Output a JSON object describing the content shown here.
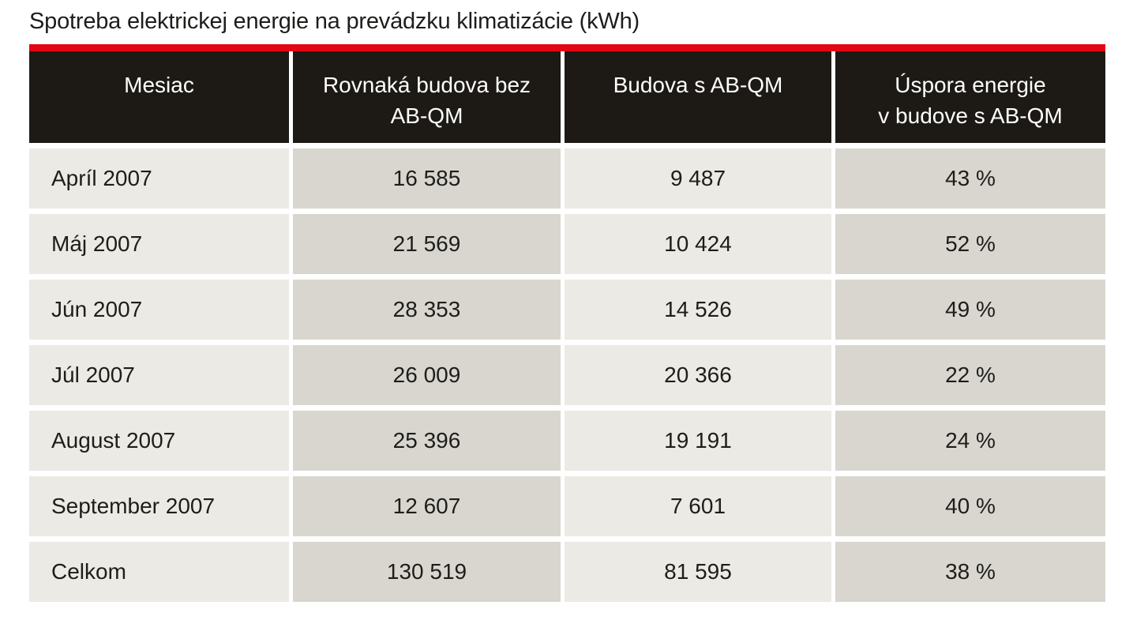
{
  "title": "Spotreba elektrickej energie na prevádzku klimatizácie (kWh)",
  "colors": {
    "accent_red": "#e30613",
    "header_background": "#1d1a16",
    "column_light": "#ebeae4",
    "column_dark": "#d9d6cf",
    "text": "#1d1d1b",
    "header_text": "#ffffff"
  },
  "table": {
    "columns": [
      {
        "lines": [
          "Mesiac"
        ]
      },
      {
        "lines": [
          "Rovnaká budova bez",
          "AB-QM"
        ]
      },
      {
        "lines": [
          "Budova s AB-QM"
        ]
      },
      {
        "lines": [
          "Úspora energie",
          "v budove s AB-QM"
        ]
      }
    ],
    "rows": [
      [
        "Apríl 2007",
        "16 585",
        "9 487",
        "43 %"
      ],
      [
        "Máj 2007",
        "21 569",
        "10 424",
        "52 %"
      ],
      [
        "Jún 2007",
        "28 353",
        "14 526",
        "49 %"
      ],
      [
        "Júl 2007",
        "26 009",
        "20 366",
        "22 %"
      ],
      [
        "August 2007",
        "25 396",
        "19 191",
        "24 %"
      ],
      [
        "September 2007",
        "12 607",
        "7 601",
        "40 %"
      ],
      [
        "Celkom",
        "130 519",
        "81 595",
        "38 %"
      ]
    ]
  },
  "chart_data": {
    "type": "table",
    "title": "Spotreba elektrickej energie na prevádzku klimatizácie (kWh)",
    "columns": [
      "Mesiac",
      "Rovnaká budova bez AB-QM",
      "Budova s AB-QM",
      "Úspora energie v budove s AB-QM"
    ],
    "rows": [
      [
        "Apríl 2007",
        "16 585",
        "9 487",
        "43 %"
      ],
      [
        "Máj 2007",
        "21 569",
        "10 424",
        "52 %"
      ],
      [
        "Jún 2007",
        "28 353",
        "14 526",
        "49 %"
      ],
      [
        "Júl 2007",
        "26 009",
        "20 366",
        "22 %"
      ],
      [
        "August 2007",
        "25 396",
        "19 191",
        "24 %"
      ],
      [
        "September 2007",
        "12 607",
        "7 601",
        "40 %"
      ],
      [
        "Celkom",
        "130 519",
        "81 595",
        "38 %"
      ]
    ],
    "units": "kWh"
  }
}
